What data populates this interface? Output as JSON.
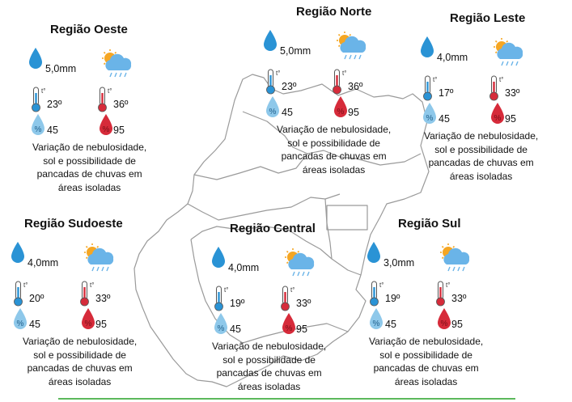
{
  "colors": {
    "rain": "#2a93d5",
    "temp_min": "#2a93d5",
    "temp_max": "#d62b3a",
    "humidity_min": "#8ec8ea",
    "humidity_max": "#d62b3a",
    "sun": "#f5a623",
    "cloud": "#6ab4e8",
    "map_line": "#9a9a9a",
    "rule": "#5cb85c"
  },
  "icons": {
    "rain": "raindrop-icon",
    "weather": "sun-cloud-rain-icon",
    "temp_min": "thermometer-blue-icon",
    "temp_max": "thermometer-red-icon",
    "humidity_min": "humidity-drop-light-icon",
    "humidity_max": "humidity-drop-red-icon",
    "thermo_label": "t°"
  },
  "regions": [
    {
      "title": "Região Oeste",
      "rain": "5,0mm",
      "temp_min": "23º",
      "temp_max": "36º",
      "hum_min": "45",
      "hum_max": "95",
      "desc": [
        "Variação de nebulosidade,",
        "sol e possibilidade de",
        "pancadas de chuvas em",
        "áreas isoladas"
      ]
    },
    {
      "title": "Região Norte",
      "rain": "5,0mm",
      "temp_min": "23º",
      "temp_max": "36º",
      "hum_min": "45",
      "hum_max": "95",
      "desc": [
        "Variação de nebulosidade,",
        "sol e possibilidade de",
        "pancadas de chuvas em",
        "áreas isoladas"
      ]
    },
    {
      "title": "Região Leste",
      "rain": "4,0mm",
      "temp_min": "17º",
      "temp_max": "33º",
      "hum_min": "45",
      "hum_max": "95",
      "desc": [
        "Variação de nebulosidade,",
        "sol e possibilidade de",
        "pancadas de chuvas em",
        "áreas isoladas"
      ]
    },
    {
      "title": "Região Sudoeste",
      "rain": "4,0mm",
      "temp_min": "20º",
      "temp_max": "33º",
      "hum_min": "45",
      "hum_max": "95",
      "desc": [
        "Variação de nebulosidade,",
        "sol e possibilidade de",
        "pancadas de chuvas em",
        "áreas isoladas"
      ]
    },
    {
      "title": "Região Central",
      "rain": "4,0mm",
      "temp_min": "19º",
      "temp_max": "33º",
      "hum_min": "45",
      "hum_max": "95",
      "desc": [
        "Variação de nebulosidade,",
        "sol e possibilidade de",
        "pancadas de chuvas em",
        "áreas isoladas"
      ]
    },
    {
      "title": "Região Sul",
      "rain": "3,0mm",
      "temp_min": "19º",
      "temp_max": "33º",
      "hum_min": "45",
      "hum_max": "95",
      "desc": [
        "Variação de nebulosidade,",
        "sol e possibilidade de",
        "pancadas de chuvas em",
        "áreas isoladas"
      ]
    }
  ]
}
